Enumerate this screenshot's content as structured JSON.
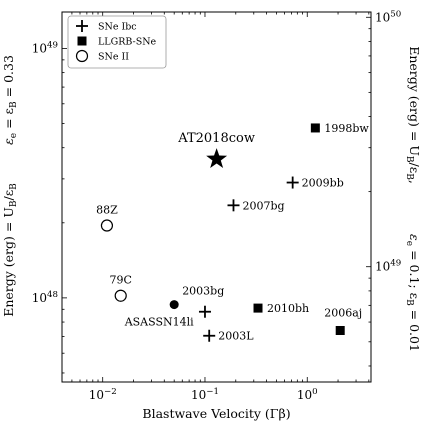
{
  "chart_data": {
    "type": "scatter",
    "xlabel": "Blastwave Velocity (Γβ)",
    "ylabel_left_1": "Energy (erg) = U",
    "ylabel_left_1_sub": "B",
    "ylabel_left_1_tail": "/ε",
    "ylabel_left_1_sub2": "B",
    "ylabel_left_2": "ε",
    "ylabel_left_2_sub": "e",
    "ylabel_left_2_mid": " = ε",
    "ylabel_left_2_sub2": "B",
    "ylabel_left_2_val": " = 0.33",
    "ylabel_right_1": "Energy (erg) = U",
    "ylabel_right_1_sub": "B",
    "ylabel_right_1_tail": "/ε",
    "ylabel_right_1_sub2": "B",
    "ylabel_right_1_end": ",",
    "ylabel_right_2": "ε",
    "ylabel_right_2_sub": "e",
    "ylabel_right_2_mid": " = 0.1; ε",
    "ylabel_right_2_sub2": "B",
    "ylabel_right_2_val": " = 0.01",
    "xscale": "log",
    "yscale": "log",
    "xlim": [
      0.004,
      4.2
    ],
    "ylim_left": [
      4.6e+47,
      1.4e+49
    ],
    "ylim_right": [
      3.45e+48,
      1.05e+50
    ],
    "x_ticks": [
      {
        "value": 0.01,
        "label": "10",
        "exp": "−2"
      },
      {
        "value": 0.1,
        "label": "10",
        "exp": "−1"
      },
      {
        "value": 1,
        "label": "10",
        "exp": "0"
      }
    ],
    "y_ticks_left": [
      {
        "value": 1e+48,
        "label": "10",
        "exp": "48"
      },
      {
        "value": 1e+49,
        "label": "10",
        "exp": "49"
      }
    ],
    "y_ticks_right": [
      {
        "value": 1e+49,
        "label": "10",
        "exp": "49"
      },
      {
        "value": 1e+50,
        "label": "10",
        "exp": "50"
      }
    ],
    "legend": {
      "position": "top-left",
      "entries": [
        {
          "marker": "plus",
          "label": "SNe Ibc"
        },
        {
          "marker": "square",
          "label": "LLGRB-SNe"
        },
        {
          "marker": "circle-open",
          "label": "SNe II"
        }
      ]
    },
    "points": [
      {
        "name": "AT2018cow",
        "x": 0.13,
        "y": 3.6e+48,
        "marker": "star",
        "label_pos": "above"
      },
      {
        "name": "1998bw",
        "x": 1.2,
        "y": 4.8e+48,
        "marker": "square",
        "label_pos": "right"
      },
      {
        "name": "2009bb",
        "x": 0.72,
        "y": 2.9e+48,
        "marker": "plus",
        "label_pos": "right"
      },
      {
        "name": "2007bg",
        "x": 0.19,
        "y": 2.35e+48,
        "marker": "plus",
        "label_pos": "right"
      },
      {
        "name": "88Z",
        "x": 0.011,
        "y": 1.95e+48,
        "marker": "circle-open",
        "label_pos": "above"
      },
      {
        "name": "79C",
        "x": 0.015,
        "y": 1.02e+48,
        "marker": "circle-open",
        "label_pos": "above"
      },
      {
        "name": "2003bg",
        "x": 0.05,
        "y": 9.4e+47,
        "marker": "circle-filled",
        "label_pos": "above-right"
      },
      {
        "name": "ASASSN14li",
        "x": 0.05,
        "y": 9.4e+47,
        "marker": "none",
        "label_pos": "below"
      },
      {
        "name": "2003L",
        "x": 0.11,
        "y": 7.05e+47,
        "marker": "plus",
        "label_pos": "right"
      },
      {
        "name": "2003L",
        "x": 0.1,
        "y": 8.8e+47,
        "marker": "plus",
        "label_pos": "none"
      },
      {
        "name": "2010bh",
        "x": 0.33,
        "y": 9.1e+47,
        "marker": "square",
        "label_pos": "right"
      },
      {
        "name": "2006aj",
        "x": 2.1,
        "y": 7.4e+47,
        "marker": "square",
        "label_pos": "above"
      }
    ]
  }
}
